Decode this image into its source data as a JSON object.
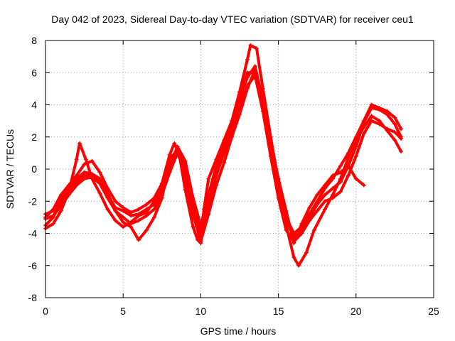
{
  "chart_data": {
    "type": "scatter",
    "title": "Day 042 of 2023, Sidereal Day-to-day VTEC variation (SDTVAR) for receiver ceu1",
    "xlabel": "GPS time / hours",
    "ylabel": "SDTVAR / TECUs",
    "xlim": [
      0,
      25
    ],
    "ylim": [
      -8,
      8
    ],
    "xticks": [
      0,
      5,
      10,
      15,
      20,
      25
    ],
    "yticks": [
      -8,
      -6,
      -4,
      -2,
      0,
      2,
      4,
      6,
      8
    ],
    "grid": true,
    "marker": "+",
    "color": "#ff0000",
    "series": [
      {
        "x": [
          0,
          0.5,
          1,
          1.5,
          2,
          2.2,
          2.6,
          3,
          3.5,
          4,
          4.5,
          5,
          5.5,
          6,
          6.5,
          7,
          7.5,
          8,
          8.3,
          8.6,
          9,
          9.5,
          9.8,
          10,
          10.2,
          10.5,
          11,
          11.5,
          12,
          12.5,
          13,
          13.2,
          13.6,
          14,
          14.5,
          15,
          15.5,
          16,
          16.3,
          16.8,
          17.3,
          18,
          18.5,
          19,
          19.5,
          20,
          20.5,
          21,
          21.5,
          22,
          22.5,
          22.9
        ],
        "y": [
          -3.7,
          -3.4,
          -2.6,
          -1.4,
          0.6,
          1.6,
          0.6,
          -0.6,
          -1.5,
          -2.5,
          -3.2,
          -3.6,
          -3.3,
          -2.9,
          -2.7,
          -2.0,
          -0.9,
          0.9,
          1.6,
          1.0,
          -1.3,
          -3.6,
          -4.4,
          -4.6,
          -2.5,
          -0.6,
          0.6,
          1.8,
          3.0,
          4.8,
          6.8,
          7.7,
          7.5,
          5.0,
          2.0,
          -0.8,
          -3.5,
          -5.5,
          -6.0,
          -5.2,
          -3.8,
          -2.5,
          -1.6,
          -0.6,
          0.7,
          1.8,
          2.6,
          3.3,
          3.0,
          2.4,
          1.8,
          1.1
        ]
      },
      {
        "x": [
          0,
          0.5,
          1,
          1.5,
          2,
          2.5,
          3,
          3.5,
          4,
          4.5,
          5,
          5.5,
          6,
          6.5,
          7,
          7.5,
          8,
          8.5,
          9,
          9.5,
          10,
          10.5,
          11,
          11.5,
          12,
          12.5,
          13,
          13.5,
          14,
          14.5,
          15,
          15.5,
          16,
          16.5,
          17,
          17.5,
          18,
          18.5,
          19,
          19.5,
          20,
          20.5,
          21,
          21.5,
          22,
          22.5,
          22.9
        ],
        "y": [
          -2.8,
          -2.6,
          -1.8,
          -1.2,
          -0.6,
          -0.2,
          -0.3,
          -0.6,
          -1.6,
          -2.4,
          -2.6,
          -2.9,
          -2.8,
          -2.5,
          -2.2,
          -1.3,
          0.2,
          1.4,
          0.5,
          -1.8,
          -3.5,
          -1.6,
          0.2,
          1.5,
          2.8,
          4.4,
          5.7,
          6.4,
          4.2,
          1.5,
          -1.2,
          -3.2,
          -4.2,
          -3.8,
          -3.0,
          -2.2,
          -1.6,
          -1.2,
          -0.8,
          0.2,
          1.4,
          2.9,
          3.8,
          3.7,
          3.4,
          2.8,
          2.0
        ]
      },
      {
        "x": [
          0,
          0.5,
          1,
          1.5,
          2,
          2.5,
          3,
          3.5,
          4,
          4.5,
          5,
          5.5,
          6,
          6.5,
          7,
          7.5,
          8,
          8.5,
          9,
          9.5,
          10,
          10.5,
          11,
          11.5,
          12,
          12.5,
          13,
          13.5,
          14,
          14.5,
          15,
          15.5,
          16,
          16.5,
          17,
          17.5,
          18,
          18.5,
          19,
          19.5,
          20,
          20.5,
          21,
          21.5,
          22,
          22.5,
          22.9
        ],
        "y": [
          -3.1,
          -2.9,
          -2.3,
          -1.6,
          -1.0,
          -0.6,
          -0.5,
          -0.9,
          -1.8,
          -2.6,
          -3.0,
          -3.4,
          -3.2,
          -2.9,
          -2.5,
          -1.6,
          -0.2,
          1.0,
          -0.2,
          -2.6,
          -4.1,
          -2.2,
          -0.4,
          1.0,
          2.2,
          3.8,
          5.2,
          5.8,
          3.6,
          0.8,
          -1.8,
          -3.8,
          -4.5,
          -4.0,
          -3.2,
          -2.6,
          -2.0,
          -1.8,
          -1.4,
          -0.4,
          0.8,
          2.2,
          3.0,
          2.8,
          2.5,
          2.3,
          1.9
        ]
      },
      {
        "x": [
          0,
          0.5,
          1,
          1.5,
          2,
          2.5,
          3,
          3.5,
          4,
          4.5,
          5,
          5.5,
          6,
          6.5,
          7,
          7.5,
          8,
          8.5,
          9,
          9.5,
          10,
          10.5,
          11,
          11.5,
          12,
          12.5,
          13,
          13.5,
          14,
          14.5,
          15,
          15.5,
          16,
          16.5,
          17,
          17.5,
          18,
          18.5,
          19,
          19.5,
          20,
          20.5,
          21,
          21.5,
          22,
          22.5,
          22.9
        ],
        "y": [
          -3.0,
          -2.5,
          -1.6,
          -1.0,
          -0.4,
          0.3,
          0.5,
          -0.2,
          -1.2,
          -2.0,
          -2.4,
          -2.7,
          -2.5,
          -2.2,
          -1.8,
          -0.9,
          0.6,
          1.2,
          0.1,
          -2.2,
          -4.0,
          -1.8,
          0.0,
          1.2,
          2.6,
          4.2,
          6.0,
          6.0,
          3.8,
          1.2,
          -1.5,
          -3.0,
          -4.0,
          -3.6,
          -2.8,
          -2.0,
          -1.2,
          -0.6,
          0.2,
          1.0,
          2.0,
          3.0,
          4.0,
          3.8,
          3.6,
          3.2,
          2.5
        ]
      },
      {
        "x": [
          0,
          0.5,
          1,
          1.5,
          2,
          2.5,
          3,
          3.5,
          4,
          4.5,
          5,
          5.5,
          6,
          6.5,
          7,
          7.5,
          8,
          8.5,
          9,
          9.5,
          10,
          10.5,
          11,
          11.5,
          12,
          12.5,
          13,
          13.5,
          14,
          14.5,
          15,
          15.5,
          16,
          16.5,
          17,
          17.5,
          18,
          18.5,
          19,
          19.5,
          20,
          20.5
        ],
        "y": [
          -3.5,
          -3.0,
          -2.0,
          -1.4,
          -0.8,
          -0.4,
          -0.4,
          -0.7,
          -1.5,
          -2.6,
          -3.3,
          -3.6,
          -4.4,
          -3.8,
          -3.0,
          -1.8,
          0.4,
          1.2,
          -0.4,
          -2.8,
          -4.5,
          -2.8,
          -1.0,
          0.4,
          2.0,
          3.4,
          5.0,
          6.2,
          4.4,
          1.8,
          -0.6,
          -2.6,
          -4.6,
          -3.4,
          -2.4,
          -1.6,
          -1.0,
          -0.4,
          -0.2,
          0.2,
          -0.6,
          -1.0
        ]
      }
    ]
  }
}
